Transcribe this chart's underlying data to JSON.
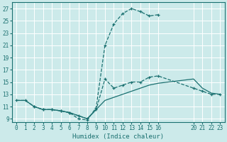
{
  "xlabel": "Humidex (Indice chaleur)",
  "bg_color": "#cceaea",
  "line_color": "#1a7070",
  "grid_color": "#ffffff",
  "xlim": [
    -0.5,
    23.5
  ],
  "ylim": [
    8.5,
    28.0
  ],
  "xticks": [
    0,
    1,
    2,
    3,
    4,
    5,
    6,
    7,
    8,
    9,
    10,
    11,
    12,
    13,
    14,
    15,
    16,
    20,
    21,
    22,
    23
  ],
  "yticks": [
    9,
    11,
    13,
    15,
    17,
    19,
    21,
    23,
    25,
    27
  ],
  "line1_x": [
    0,
    1,
    2,
    3,
    4,
    5,
    6,
    7,
    8,
    9,
    10,
    11,
    12,
    13,
    14,
    15,
    16
  ],
  "line1_y": [
    12.0,
    12.0,
    11.0,
    10.5,
    10.5,
    10.3,
    10.0,
    9.0,
    8.8,
    10.8,
    21.0,
    24.5,
    26.2,
    27.0,
    26.5,
    25.8,
    26.0
  ],
  "line2_x": [
    2,
    3,
    4,
    5,
    6,
    7,
    8,
    9,
    10,
    11,
    12,
    13,
    14,
    15,
    16,
    20,
    21,
    22,
    23
  ],
  "line2_y": [
    11.0,
    10.5,
    10.5,
    10.3,
    10.0,
    9.5,
    9.0,
    10.5,
    15.5,
    14.0,
    14.5,
    15.0,
    15.0,
    15.8,
    16.0,
    14.0,
    13.5,
    13.0,
    13.0
  ],
  "line3_x": [
    0,
    1,
    2,
    3,
    4,
    5,
    6,
    7,
    8,
    9,
    10,
    11,
    12,
    13,
    14,
    15,
    16,
    20,
    21,
    22,
    23
  ],
  "line3_y": [
    12.0,
    12.0,
    11.0,
    10.5,
    10.5,
    10.3,
    10.0,
    9.5,
    9.0,
    10.5,
    12.0,
    12.5,
    13.0,
    13.5,
    14.0,
    14.5,
    14.8,
    15.5,
    14.0,
    13.2,
    13.0
  ]
}
